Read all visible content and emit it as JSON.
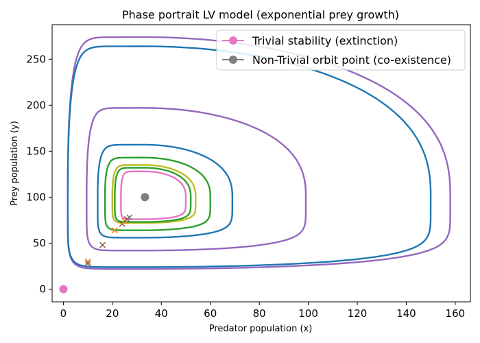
{
  "chart_data": {
    "type": "line",
    "title": "Phase portrait LV model (exponential prey growth)",
    "xlabel": "Predator population (x)",
    "ylabel": "Prey population (y)",
    "xlim": [
      -4.6,
      166.2
    ],
    "ylim": [
      -13.8,
      287.5
    ],
    "xticks": [
      0,
      20,
      40,
      60,
      80,
      100,
      120,
      140,
      160
    ],
    "yticks": [
      0,
      50,
      100,
      150,
      200,
      250
    ],
    "grid": false,
    "legend_position": "top-right",
    "legend": [
      {
        "label": "Trivial stability (extinction)",
        "color": "#e377c2"
      },
      {
        "label": "Non-Trivial orbit point (co-existence)",
        "color": "#7f7f7f"
      }
    ],
    "equilibria": [
      {
        "name": "Trivial stability (extinction)",
        "x": 0,
        "y": 0,
        "color": "#e377c2"
      },
      {
        "name": "Non-Trivial orbit point (co-existence)",
        "x": 33.3,
        "y": 100,
        "color": "#7f7f7f"
      }
    ],
    "orbits": [
      {
        "color": "#9467bd",
        "xmin": 1.8,
        "xmax": 158,
        "ymin": 22,
        "ymax": 274,
        "start": [
          10,
          30
        ]
      },
      {
        "color": "#1f77b4",
        "xmin": 1.8,
        "xmax": 150,
        "ymin": 24,
        "ymax": 264,
        "start": [
          10,
          28
        ]
      },
      {
        "color": "#9467bd",
        "xmin": 9.5,
        "xmax": 99,
        "ymin": 42,
        "ymax": 197,
        "start": [
          16,
          48
        ]
      },
      {
        "color": "#1f77b4",
        "xmin": 14,
        "xmax": 69,
        "ymin": 56,
        "ymax": 157,
        "start": [
          21,
          64
        ]
      },
      {
        "color": "#2ca02c",
        "xmin": 17,
        "xmax": 60,
        "ymin": 64,
        "ymax": 143,
        "start": [
          24,
          71
        ]
      },
      {
        "color": "#bcbd22",
        "xmin": 20,
        "xmax": 54,
        "ymin": 72,
        "ymax": 135,
        "start": [
          25,
          74
        ]
      },
      {
        "color": "#2ca02c",
        "xmin": 21,
        "xmax": 52,
        "ymin": 73,
        "ymax": 132,
        "start": [
          26,
          76
        ]
      },
      {
        "color": "#e377c2",
        "xmin": 23.5,
        "xmax": 50,
        "ymin": 76,
        "ymax": 128,
        "start": [
          27,
          78
        ]
      }
    ],
    "start_markers": [
      {
        "x": 10,
        "y": 30,
        "color": "#ff7f0e"
      },
      {
        "x": 10,
        "y": 28,
        "color": "#8c564b"
      },
      {
        "x": 16,
        "y": 48,
        "color": "#8c564b"
      },
      {
        "x": 21,
        "y": 64,
        "color": "#ff7f0e"
      },
      {
        "x": 24,
        "y": 71,
        "color": "#8c564b"
      },
      {
        "x": 25,
        "y": 74,
        "color": "#ff7f0e"
      },
      {
        "x": 26,
        "y": 76,
        "color": "#8c564b"
      },
      {
        "x": 27,
        "y": 78,
        "color": "#7f7f7f"
      }
    ]
  }
}
